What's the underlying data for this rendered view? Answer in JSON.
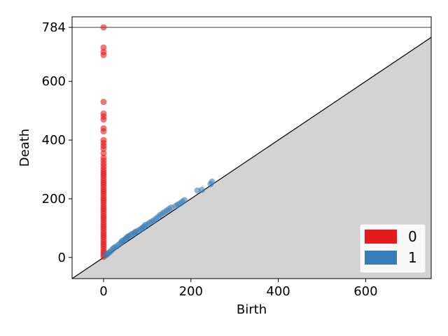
{
  "chart_data": {
    "type": "scatter",
    "title": "",
    "xlabel": "Birth",
    "ylabel": "Death",
    "xlim": [
      -72,
      750
    ],
    "ylim": [
      -72,
      820
    ],
    "xticks": [
      0,
      200,
      400,
      600
    ],
    "yticks": [
      0,
      200,
      400,
      600,
      784
    ],
    "infinity_line": 784,
    "grid": false,
    "legend_position": "bottom-right",
    "colors": {
      "h0": "#e41a1c",
      "h1": "#377eb8",
      "diagonal_fill": "#d3d3d3",
      "infinity_line": "#666666"
    },
    "series": [
      {
        "name": "0",
        "points": [
          [
            0,
            784
          ],
          [
            0,
            715
          ],
          [
            0,
            700
          ],
          [
            0,
            690
          ],
          [
            0,
            530
          ],
          [
            0,
            490
          ],
          [
            0,
            480
          ],
          [
            0,
            470
          ],
          [
            0,
            440
          ],
          [
            0,
            430
          ],
          [
            0,
            400
          ],
          [
            0,
            390
          ],
          [
            0,
            380
          ],
          [
            0,
            370
          ],
          [
            0,
            355
          ],
          [
            0,
            340
          ],
          [
            0,
            330
          ],
          [
            0,
            320
          ],
          [
            0,
            310
          ],
          [
            0,
            300
          ],
          [
            0,
            292
          ],
          [
            0,
            285
          ],
          [
            0,
            278
          ],
          [
            0,
            270
          ],
          [
            0,
            262
          ],
          [
            0,
            255
          ],
          [
            0,
            248
          ],
          [
            0,
            240
          ],
          [
            0,
            232
          ],
          [
            0,
            225
          ],
          [
            0,
            218
          ],
          [
            0,
            210
          ],
          [
            0,
            202
          ],
          [
            0,
            195
          ],
          [
            0,
            188
          ],
          [
            0,
            180
          ],
          [
            0,
            172
          ],
          [
            0,
            165
          ],
          [
            0,
            158
          ],
          [
            0,
            150
          ],
          [
            0,
            142
          ],
          [
            0,
            135
          ],
          [
            0,
            128
          ],
          [
            0,
            120
          ],
          [
            0,
            112
          ],
          [
            0,
            105
          ],
          [
            0,
            98
          ],
          [
            0,
            90
          ],
          [
            0,
            82
          ],
          [
            0,
            75
          ],
          [
            0,
            68
          ],
          [
            0,
            60
          ],
          [
            0,
            52
          ],
          [
            0,
            45
          ],
          [
            0,
            38
          ],
          [
            0,
            30
          ],
          [
            0,
            22
          ],
          [
            0,
            15
          ],
          [
            0,
            8
          ],
          [
            0,
            2
          ]
        ]
      },
      {
        "name": "1",
        "points": [
          [
            5,
            7
          ],
          [
            8,
            11
          ],
          [
            10,
            14
          ],
          [
            14,
            18
          ],
          [
            18,
            24
          ],
          [
            22,
            30
          ],
          [
            25,
            34
          ],
          [
            30,
            38
          ],
          [
            35,
            44
          ],
          [
            40,
            50
          ],
          [
            42,
            55
          ],
          [
            45,
            58
          ],
          [
            50,
            62
          ],
          [
            52,
            66
          ],
          [
            55,
            70
          ],
          [
            58,
            73
          ],
          [
            62,
            76
          ],
          [
            65,
            80
          ],
          [
            70,
            82
          ],
          [
            72,
            86
          ],
          [
            75,
            88
          ],
          [
            80,
            92
          ],
          [
            85,
            96
          ],
          [
            88,
            100
          ],
          [
            92,
            104
          ],
          [
            95,
            110
          ],
          [
            100,
            112
          ],
          [
            105,
            118
          ],
          [
            110,
            122
          ],
          [
            115,
            126
          ],
          [
            120,
            132
          ],
          [
            125,
            138
          ],
          [
            130,
            145
          ],
          [
            135,
            150
          ],
          [
            140,
            155
          ],
          [
            145,
            160
          ],
          [
            150,
            165
          ],
          [
            155,
            170
          ],
          [
            165,
            175
          ],
          [
            170,
            180
          ],
          [
            175,
            184
          ],
          [
            180,
            190
          ],
          [
            185,
            195
          ],
          [
            215,
            228
          ],
          [
            225,
            230
          ],
          [
            245,
            250
          ],
          [
            248,
            258
          ]
        ]
      }
    ]
  }
}
